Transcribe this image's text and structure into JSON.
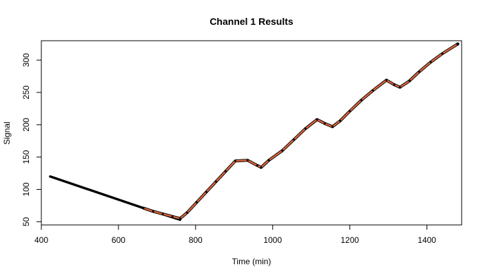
{
  "chart_data": {
    "type": "line",
    "title": "Channel 1 Results",
    "xlabel": "Time (min)",
    "ylabel": "Signal",
    "xlim": [
      400,
      1490
    ],
    "ylim": [
      45,
      330
    ],
    "x_ticks": [
      400,
      600,
      800,
      1000,
      1200,
      1400
    ],
    "y_ticks": [
      50,
      100,
      150,
      200,
      250,
      300
    ],
    "x_tick_labels": [
      "400",
      "600",
      "800",
      "1000",
      "1200",
      "1400"
    ],
    "y_tick_labels": [
      "50",
      "100",
      "150",
      "200",
      "250",
      "300"
    ],
    "grid": false,
    "legend": "none",
    "series": [
      {
        "color": "#000000",
        "style": "line",
        "x": [
          423,
          665,
          760
        ],
        "y": [
          120,
          71,
          53
        ]
      },
      {
        "color": "#d9623b",
        "style": "line-with-points",
        "x": [
          665,
          690,
          715,
          740,
          760,
          778,
          803,
          828,
          853,
          878,
          903,
          935,
          960,
          970,
          990,
          1025,
          1055,
          1085,
          1115,
          1135,
          1155,
          1175,
          1200,
          1230,
          1260,
          1295,
          1315,
          1330,
          1355,
          1380,
          1410,
          1440,
          1480
        ],
        "y": [
          71,
          66,
          62,
          58,
          55,
          64,
          80,
          96,
          112,
          128,
          144,
          145,
          137,
          134,
          145,
          160,
          177,
          194,
          208,
          202,
          197,
          206,
          221,
          238,
          253,
          269,
          262,
          258,
          268,
          282,
          297,
          310,
          325
        ]
      }
    ]
  }
}
